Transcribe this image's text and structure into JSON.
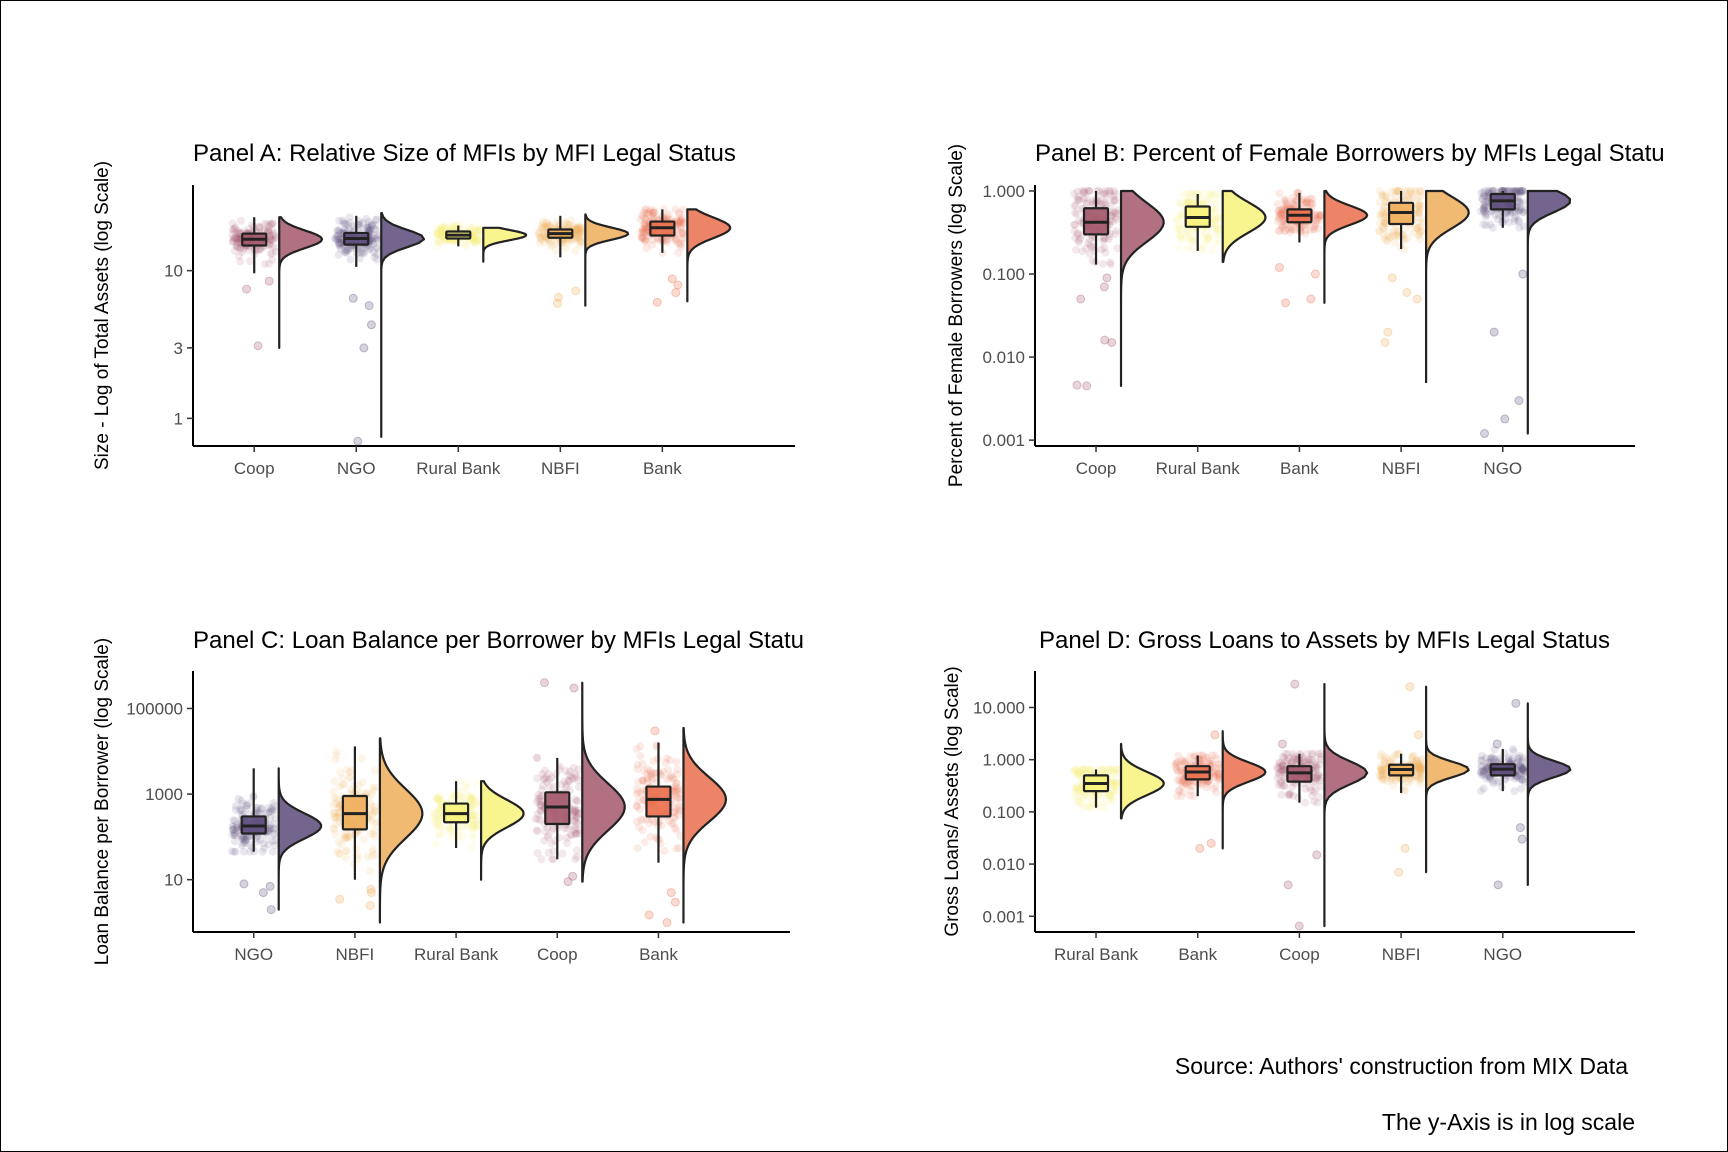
{
  "caption": {
    "source": "Source: Authors' construction from MIX Data",
    "note": "The y-Axis is in log scale"
  },
  "colors": {
    "Coop": "#a4586c",
    "NGO": "#5b4a7a",
    "Rural Bank": "#f7f27a",
    "NBFI": "#efae5a",
    "Bank": "#ea6f4c",
    "outline": "#222222"
  },
  "chart_data": [
    {
      "type": "raincloud",
      "title": "Panel A: Relative Size of MFIs by MFI Legal Status",
      "ylabel": "Size - Log of Total Assets (log Scale)",
      "xlabel": "",
      "log_y": true,
      "ylim": [
        0.65,
        38
      ],
      "yticks": [
        1,
        3,
        10
      ],
      "ytick_labels": [
        "1",
        "3",
        "10"
      ],
      "categories": [
        "Coop",
        "NGO",
        "Rural Bank",
        "NBFI",
        "Bank"
      ],
      "box": [
        {
          "min": 9.6,
          "q1": 14.8,
          "median": 16.3,
          "q3": 17.8,
          "max": 23
        },
        {
          "min": 10.6,
          "q1": 15,
          "median": 16.5,
          "q3": 18,
          "max": 23.5
        },
        {
          "min": 14.6,
          "q1": 16.5,
          "median": 17.4,
          "q3": 18.4,
          "max": 20.2
        },
        {
          "min": 12.3,
          "q1": 16.7,
          "median": 17.8,
          "q3": 19,
          "max": 23.5
        },
        {
          "min": 13.2,
          "q1": 17.3,
          "median": 19.5,
          "q3": 21.5,
          "max": 26
        }
      ],
      "density_range": [
        [
          3,
          23
        ],
        [
          0.75,
          24.5
        ],
        [
          11.5,
          19.5
        ],
        [
          5.8,
          24
        ],
        [
          6.2,
          26
        ]
      ],
      "outliers": [
        [
          3.1,
          7.5,
          8.5
        ],
        [
          0.7,
          3,
          4.3,
          5.8,
          6.5
        ],
        [],
        [
          6,
          6.6,
          7.3
        ],
        [
          6.1,
          7.1,
          8,
          8.8
        ]
      ]
    },
    {
      "type": "raincloud",
      "title": "Panel B: Percent of Female Borrowers by MFIs Legal Statu",
      "ylabel": "Percent of Female Borrowers (log Scale)",
      "xlabel": "",
      "log_y": true,
      "ylim": [
        0.00085,
        1.18
      ],
      "yticks": [
        0.001,
        0.01,
        0.1,
        1
      ],
      "ytick_labels": [
        "0.001",
        "0.010",
        "0.100",
        "1.000"
      ],
      "categories": [
        "Coop",
        "Rural Bank",
        "Bank",
        "NBFI",
        "NGO"
      ],
      "box": [
        {
          "min": 0.13,
          "q1": 0.3,
          "median": 0.42,
          "q3": 0.62,
          "max": 1
        },
        {
          "min": 0.19,
          "q1": 0.37,
          "median": 0.48,
          "q3": 0.65,
          "max": 0.92
        },
        {
          "min": 0.24,
          "q1": 0.42,
          "median": 0.51,
          "q3": 0.6,
          "max": 0.95
        },
        {
          "min": 0.2,
          "q1": 0.4,
          "median": 0.55,
          "q3": 0.72,
          "max": 1
        },
        {
          "min": 0.36,
          "q1": 0.6,
          "median": 0.76,
          "q3": 0.92,
          "max": 1
        }
      ],
      "density_range": [
        [
          0.0045,
          1
        ],
        [
          0.14,
          1
        ],
        [
          0.045,
          1
        ],
        [
          0.005,
          1
        ],
        [
          0.0012,
          1
        ]
      ],
      "outliers": [
        [
          0.0045,
          0.0046,
          0.015,
          0.016,
          0.05,
          0.07,
          0.09
        ],
        [],
        [
          0.045,
          0.05,
          0.1,
          0.12
        ],
        [
          0.015,
          0.02,
          0.05,
          0.06,
          0.09
        ],
        [
          0.0012,
          0.0018,
          0.003,
          0.02,
          0.1
        ]
      ]
    },
    {
      "type": "raincloud",
      "title": "Panel C: Loan Balance per Borrower by MFIs Legal Statu",
      "ylabel": "Loan Balance per Borrower (log Scale)",
      "xlabel": "",
      "log_y": true,
      "ylim": [
        0.6,
        750000
      ],
      "yticks": [
        10,
        1000,
        100000
      ],
      "ytick_labels": [
        "10",
        "1000",
        "100000"
      ],
      "categories": [
        "NGO",
        "NBFI",
        "Rural Bank",
        "Coop",
        "Bank"
      ],
      "box": [
        {
          "min": 45,
          "q1": 120,
          "median": 180,
          "q3": 300,
          "max": 4000
        },
        {
          "min": 10,
          "q1": 150,
          "median": 350,
          "q3": 900,
          "max": 13000
        },
        {
          "min": 55,
          "q1": 220,
          "median": 350,
          "q3": 600,
          "max": 2000
        },
        {
          "min": 30,
          "q1": 200,
          "median": 500,
          "q3": 1100,
          "max": 7000
        },
        {
          "min": 25,
          "q1": 300,
          "median": 750,
          "q3": 1500,
          "max": 16000
        }
      ],
      "density_range": [
        [
          2,
          4000
        ],
        [
          1,
          20000
        ],
        [
          10,
          2000
        ],
        [
          9,
          400000
        ],
        [
          1,
          35000
        ]
      ],
      "outliers": [
        [
          2,
          5,
          7,
          8
        ],
        [
          2.5,
          3.5,
          5,
          6
        ],
        [],
        [
          9,
          12,
          300000,
          400000
        ],
        [
          1,
          1.5,
          3,
          5,
          30000
        ]
      ]
    },
    {
      "type": "raincloud",
      "title": "Panel D: Gross Loans to Assets by MFIs Legal Status",
      "ylabel": "Gross Loans/ Assets (log Scale)",
      "xlabel": "",
      "log_y": true,
      "ylim": [
        0.0005,
        50
      ],
      "yticks": [
        0.001,
        0.01,
        0.1,
        1,
        10
      ],
      "ytick_labels": [
        "0.001",
        "0.010",
        "0.100",
        "1.000",
        "10.000"
      ],
      "categories": [
        "Rural Bank",
        "Bank",
        "Coop",
        "NBFI",
        "NGO"
      ],
      "box": [
        {
          "min": 0.12,
          "q1": 0.25,
          "median": 0.35,
          "q3": 0.5,
          "max": 0.65
        },
        {
          "min": 0.2,
          "q1": 0.42,
          "median": 0.58,
          "q3": 0.75,
          "max": 1.2
        },
        {
          "min": 0.15,
          "q1": 0.38,
          "median": 0.56,
          "q3": 0.75,
          "max": 1.3
        },
        {
          "min": 0.23,
          "q1": 0.5,
          "median": 0.65,
          "q3": 0.8,
          "max": 1.3
        },
        {
          "min": 0.25,
          "q1": 0.5,
          "median": 0.66,
          "q3": 0.82,
          "max": 1.6
        }
      ],
      "density_range": [
        [
          0.075,
          2
        ],
        [
          0.02,
          3.5
        ],
        [
          0.00065,
          28
        ],
        [
          0.007,
          25
        ],
        [
          0.004,
          12
        ]
      ],
      "outliers": [
        [],
        [
          0.02,
          0.025,
          3
        ],
        [
          0.00065,
          0.004,
          0.015,
          2,
          28
        ],
        [
          0.007,
          0.02,
          3,
          25
        ],
        [
          0.004,
          0.03,
          0.05,
          2,
          12
        ]
      ]
    }
  ]
}
